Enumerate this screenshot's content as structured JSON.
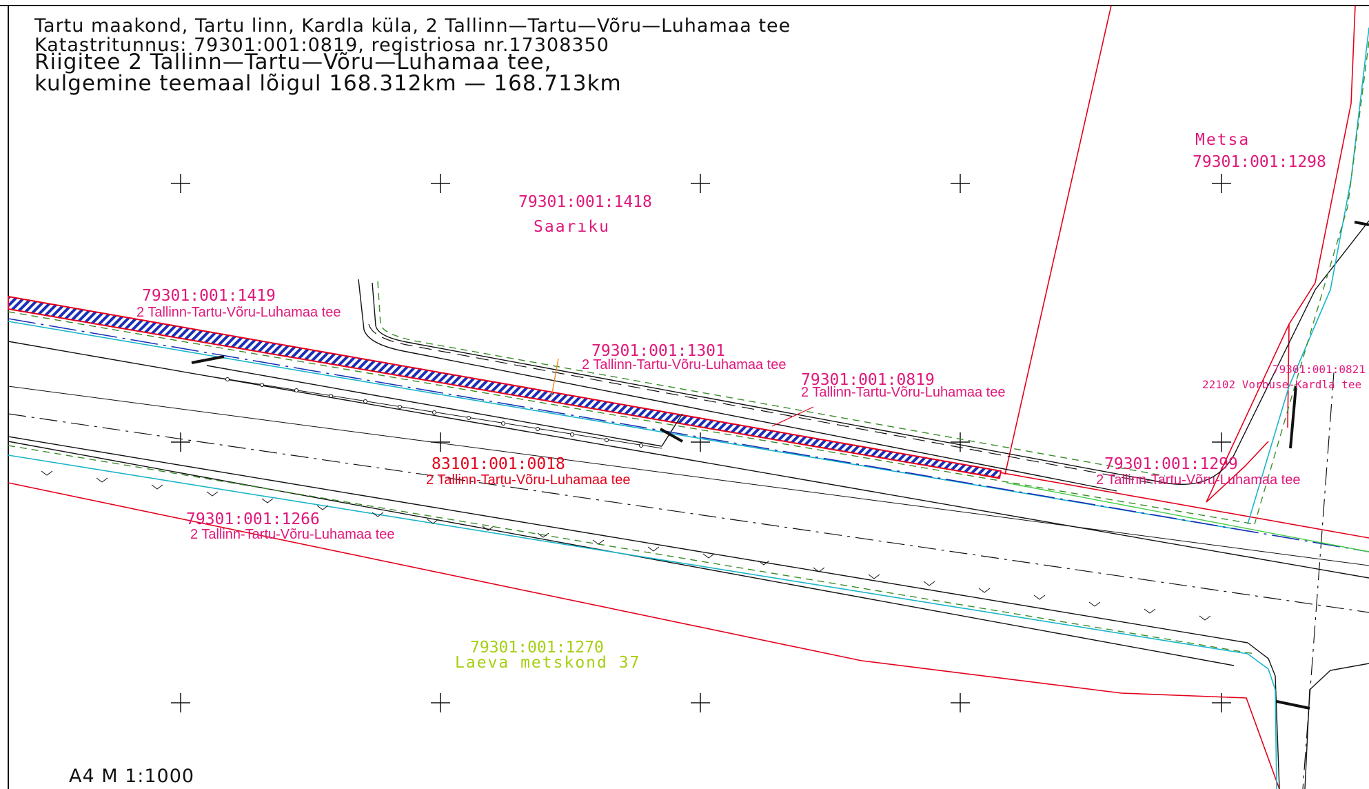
{
  "header": {
    "line1": "Tartu maakond, Tartu linn, Kardla küla, 2 Tallinn—Tartu—Võru—Luhamaa tee",
    "line2": "Katastritunnus: 79301:001:0819, registriosa nr.17308350",
    "line3": "Riigitee 2 Tallinn—Tartu—Võru—Luhamaa tee,",
    "line4": "kulgemine teemaal lõigul 168.312km — 168.713km"
  },
  "scale_note": "A4 M 1:1000",
  "parcels": {
    "p1418": {
      "code": "79301:001:1418",
      "name": "Saarıku"
    },
    "p1298": {
      "code": "79301:001:1298",
      "name": "Metsa"
    },
    "p1419": {
      "code": "79301:001:1419",
      "name": "2 Tallinn-Tartu-Võru-Luhamaa tee"
    },
    "p1301": {
      "code": "79301:001:1301",
      "name": "2 Tallinn-Tartu-Võru-Luhamaa tee"
    },
    "p0819": {
      "code": "79301:001:0819",
      "name": "2 Tallinn-Tartu-Võru-Luhamaa tee"
    },
    "p0821": {
      "code": "79301:001:0821",
      "name": "22102 Vorbuse-Kardla tee"
    },
    "p0018": {
      "code": "83101:001:0018",
      "name": "2 Tallinn-Tartu-Võru-Luhamaa tee"
    },
    "p1299": {
      "code": "79301:001:1299",
      "name": "2 Tallinn-Tartu-Võru-Luhamaa tee"
    },
    "p1266": {
      "code": "79301:001:1266",
      "name": "2 Tallinn-Tartu-Võru-Luhamaa tee"
    },
    "p1270": {
      "code": "79301:001:1270",
      "name": "Laeva metskond 37"
    }
  },
  "colors": {
    "boundary": "#e4001b",
    "label_pink": "#e0187a",
    "label_green": "#a6cf12",
    "road_edge": "#111111",
    "ditch_cyan": "#19b5c9",
    "dashed_green": "#3a8c2a",
    "servitude_blue": "#1a2fb8",
    "linework_orange": "#f08a1a"
  }
}
